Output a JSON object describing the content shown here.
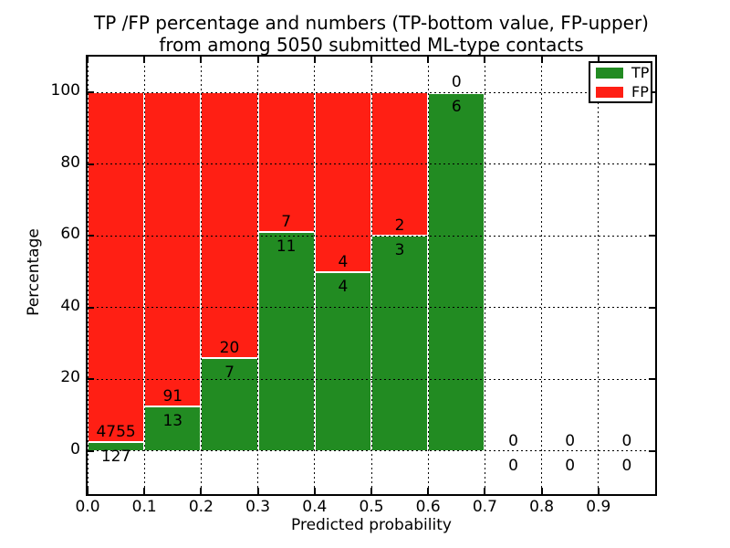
{
  "chart_data": {
    "type": "bar",
    "stacked": true,
    "title": "TP /FP percentage and numbers (TP-bottom value, FP-upper)",
    "subtitle": "from among 5050 submitted ML-type contacts",
    "xlabel": "Predicted probability",
    "ylabel": "Percentage",
    "xlim": [
      0.0,
      1.0
    ],
    "ylim": [
      -12,
      110
    ],
    "x_ticks": [
      "0.0",
      "0.1",
      "0.2",
      "0.3",
      "0.4",
      "0.5",
      "0.6",
      "0.7",
      "0.8",
      "0.9"
    ],
    "y_ticks": [
      "0",
      "20",
      "40",
      "60",
      "80",
      "100"
    ],
    "grid": true,
    "bar_edge_color": "#ffffff",
    "legend": {
      "position": "upper right",
      "entries": [
        {
          "label": "TP",
          "color": "#228B22"
        },
        {
          "label": "FP",
          "color": "#FF1F14"
        }
      ]
    },
    "bins": [
      {
        "range": [
          0.0,
          0.1
        ],
        "tp": 127,
        "fp": 4755,
        "tp_pct": 2.6
      },
      {
        "range": [
          0.1,
          0.2
        ],
        "tp": 13,
        "fp": 91,
        "tp_pct": 12.5
      },
      {
        "range": [
          0.2,
          0.3
        ],
        "tp": 7,
        "fp": 20,
        "tp_pct": 25.9
      },
      {
        "range": [
          0.3,
          0.4
        ],
        "tp": 11,
        "fp": 7,
        "tp_pct": 61.1
      },
      {
        "range": [
          0.4,
          0.5
        ],
        "tp": 4,
        "fp": 4,
        "tp_pct": 50.0
      },
      {
        "range": [
          0.5,
          0.6
        ],
        "tp": 3,
        "fp": 2,
        "tp_pct": 60.0
      },
      {
        "range": [
          0.6,
          0.7
        ],
        "tp": 6,
        "fp": 0,
        "tp_pct": 100.0
      },
      {
        "range": [
          0.7,
          0.8
        ],
        "tp": 0,
        "fp": 0,
        "tp_pct": null
      },
      {
        "range": [
          0.8,
          0.9
        ],
        "tp": 0,
        "fp": 0,
        "tp_pct": null
      },
      {
        "range": [
          0.9,
          1.0
        ],
        "tp": 0,
        "fp": 0,
        "tp_pct": null
      }
    ]
  }
}
